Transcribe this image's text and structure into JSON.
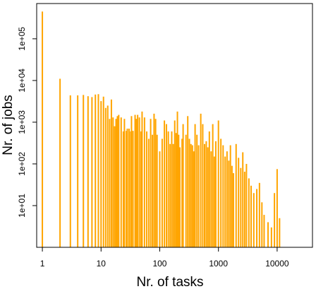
{
  "chart_data": {
    "type": "bar",
    "title": "",
    "xlabel": "Nr. of tasks",
    "ylabel": "Nr. of jobs",
    "x_scale": "log",
    "y_scale": "log",
    "xlim": [
      0.8,
      40000
    ],
    "ylim": [
      1,
      700000
    ],
    "x_ticks": [
      1,
      10,
      100,
      1000,
      10000
    ],
    "x_tick_labels": [
      "1",
      "10",
      "100",
      "1000",
      "10000"
    ],
    "y_ticks": [
      10,
      100,
      1000,
      10000,
      100000
    ],
    "y_tick_labels": [
      "1e+01",
      "1e+02",
      "1e+03",
      "1e+04",
      "1e+05"
    ],
    "grid": false,
    "legend": "none",
    "bar_color": "#FFA500",
    "points": [
      [
        1,
        450000
      ],
      [
        2,
        11000
      ],
      [
        3,
        4400
      ],
      [
        4,
        4400
      ],
      [
        5,
        4500
      ],
      [
        6,
        4200
      ],
      [
        7,
        4000
      ],
      [
        8,
        4600
      ],
      [
        9,
        4700
      ],
      [
        10,
        3200
      ],
      [
        11,
        4100
      ],
      [
        12,
        2200
      ],
      [
        13,
        2500
      ],
      [
        14,
        1200
      ],
      [
        15,
        3500
      ],
      [
        16,
        1300
      ],
      [
        17,
        800
      ],
      [
        18,
        1200
      ],
      [
        19,
        1400
      ],
      [
        20,
        1500
      ],
      [
        22,
        1300
      ],
      [
        24,
        600
      ],
      [
        25,
        1200
      ],
      [
        27,
        620
      ],
      [
        28,
        700
      ],
      [
        30,
        700
      ],
      [
        32,
        600
      ],
      [
        33,
        1400
      ],
      [
        35,
        620
      ],
      [
        38,
        1500
      ],
      [
        40,
        1200
      ],
      [
        42,
        1500
      ],
      [
        45,
        1300
      ],
      [
        48,
        600
      ],
      [
        50,
        1800
      ],
      [
        55,
        1300
      ],
      [
        60,
        600
      ],
      [
        65,
        400
      ],
      [
        70,
        1200
      ],
      [
        75,
        500
      ],
      [
        80,
        1600
      ],
      [
        85,
        1200
      ],
      [
        90,
        500
      ],
      [
        100,
        200
      ],
      [
        110,
        400
      ],
      [
        120,
        1100
      ],
      [
        130,
        900
      ],
      [
        140,
        600
      ],
      [
        150,
        300
      ],
      [
        160,
        600
      ],
      [
        170,
        300
      ],
      [
        180,
        1100
      ],
      [
        190,
        550
      ],
      [
        200,
        1800
      ],
      [
        210,
        500
      ],
      [
        220,
        250
      ],
      [
        240,
        400
      ],
      [
        250,
        900
      ],
      [
        280,
        500
      ],
      [
        300,
        1400
      ],
      [
        320,
        400
      ],
      [
        340,
        300
      ],
      [
        360,
        280
      ],
      [
        380,
        200
      ],
      [
        400,
        900
      ],
      [
        430,
        500
      ],
      [
        460,
        280
      ],
      [
        500,
        1600
      ],
      [
        540,
        900
      ],
      [
        580,
        300
      ],
      [
        620,
        350
      ],
      [
        660,
        250
      ],
      [
        700,
        600
      ],
      [
        750,
        200
      ],
      [
        800,
        900
      ],
      [
        850,
        150
      ],
      [
        900,
        350
      ],
      [
        1000,
        1100
      ],
      [
        1100,
        400
      ],
      [
        1200,
        280
      ],
      [
        1300,
        150
      ],
      [
        1400,
        200
      ],
      [
        1500,
        120
      ],
      [
        1600,
        280
      ],
      [
        1700,
        90
      ],
      [
        1800,
        60
      ],
      [
        2000,
        300
      ],
      [
        2200,
        140
      ],
      [
        2400,
        80
      ],
      [
        2600,
        190
      ],
      [
        2800,
        65
      ],
      [
        3000,
        100
      ],
      [
        3300,
        45
      ],
      [
        3600,
        30
      ],
      [
        4000,
        20
      ],
      [
        4500,
        25
      ],
      [
        5000,
        35
      ],
      [
        5500,
        12
      ],
      [
        6000,
        6
      ],
      [
        7000,
        4
      ],
      [
        8000,
        3
      ],
      [
        9000,
        20
      ],
      [
        10000,
        75
      ],
      [
        11000,
        5
      ]
    ]
  }
}
